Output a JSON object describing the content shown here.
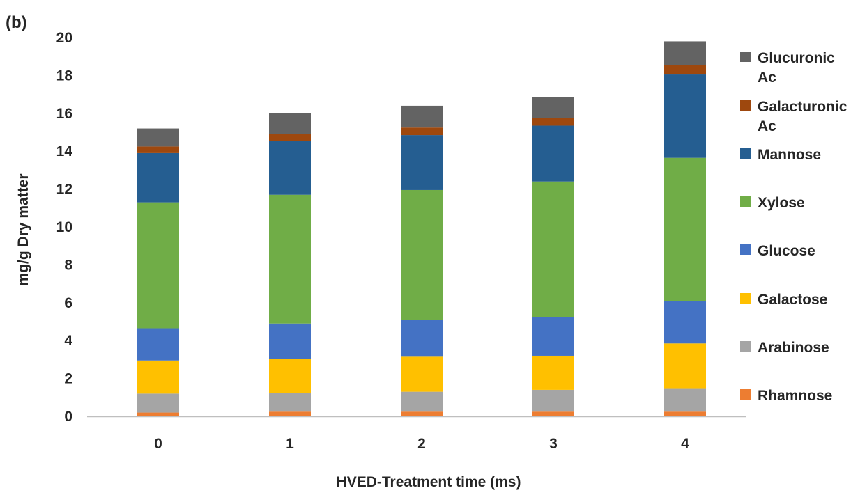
{
  "chart_data": {
    "type": "bar",
    "stacked": true,
    "panel_label": "(b)",
    "title": "",
    "xlabel": "HVED-Treatment time (ms)",
    "ylabel": "mg/g Dry matter",
    "ylim": [
      0,
      20
    ],
    "yticks": [
      "0",
      "2",
      "4",
      "6",
      "8",
      "10",
      "12",
      "14",
      "16",
      "18",
      "20"
    ],
    "categories": [
      "0",
      "1",
      "2",
      "3",
      "4"
    ],
    "grid": false,
    "legend_position": "right",
    "series": [
      {
        "name": "Rhamnose",
        "color": "#ED7D31",
        "values": [
          0.2,
          0.25,
          0.25,
          0.25,
          0.25
        ]
      },
      {
        "name": "Arabinose",
        "color": "#A5A5A5",
        "values": [
          1.0,
          1.0,
          1.05,
          1.15,
          1.2
        ]
      },
      {
        "name": "Galactose",
        "color": "#FFC000",
        "values": [
          1.75,
          1.8,
          1.85,
          1.8,
          2.4
        ]
      },
      {
        "name": "Glucose",
        "color": "#4472C4",
        "values": [
          1.7,
          1.85,
          1.95,
          2.05,
          2.25
        ]
      },
      {
        "name": "Xylose",
        "color": "#70AD47",
        "values": [
          6.65,
          6.8,
          6.85,
          7.15,
          7.55
        ]
      },
      {
        "name": "Mannose",
        "color": "#255E91",
        "values": [
          2.6,
          2.85,
          2.9,
          2.95,
          4.4
        ]
      },
      {
        "name": "Galacturonic Ac",
        "color": "#9E480E",
        "values": [
          0.35,
          0.35,
          0.4,
          0.4,
          0.5
        ]
      },
      {
        "name": "Glucuronic Ac",
        "color": "#636363",
        "values": [
          0.95,
          1.1,
          1.15,
          1.1,
          1.25
        ]
      }
    ]
  }
}
